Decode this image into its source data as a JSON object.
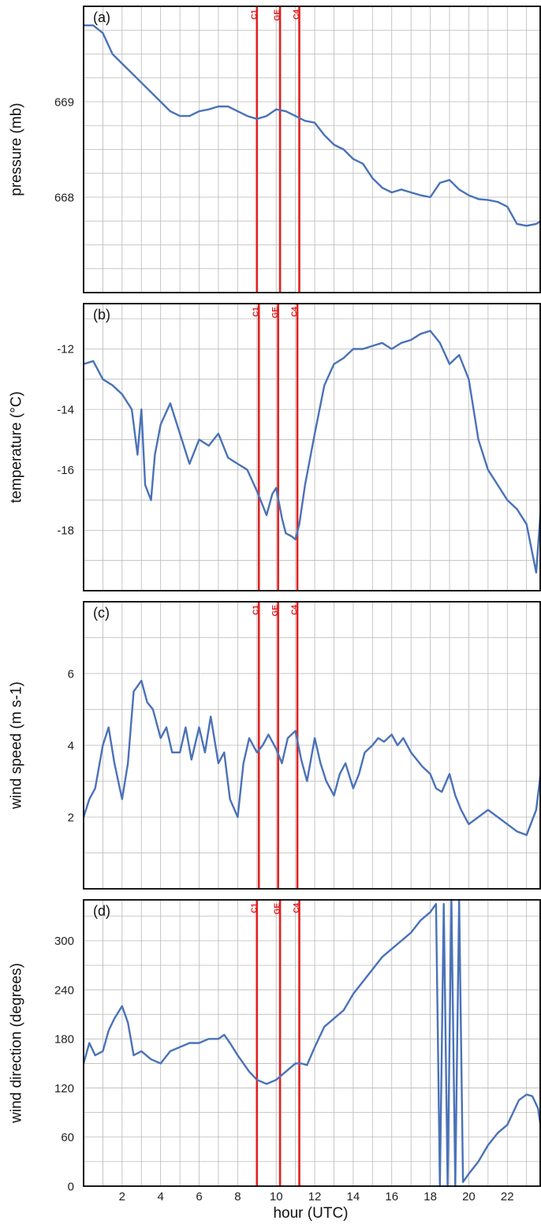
{
  "figure": {
    "xlabel": "hour (UTC)",
    "x_ticks": [
      "2",
      "4",
      "6",
      "8",
      "10",
      "12",
      "14",
      "16",
      "18",
      "20",
      "22"
    ],
    "event_labels": [
      "C1",
      "GE",
      "C4"
    ],
    "colors": {
      "series": "#4a72b8",
      "events": "#e02020",
      "grid": "#b9b9b9",
      "frame": "#000000"
    }
  },
  "chart_data": [
    {
      "type": "line",
      "panel_label": "(a)",
      "ylabel": "pressure (mb)",
      "ylim": [
        667.0,
        670.0
      ],
      "y_ticks": [
        668,
        669
      ],
      "y_tick_labels": [
        "668",
        "669"
      ],
      "y_gridlines": [
        667.25,
        667.5,
        667.75,
        668,
        668.25,
        668.5,
        668.75,
        669,
        669.25,
        669.5,
        669.75
      ],
      "xlim": [
        0,
        23.75
      ],
      "x_gridlines": [
        1,
        2,
        3,
        4,
        5,
        6,
        7,
        8,
        9,
        10,
        11,
        12,
        13,
        14,
        15,
        16,
        17,
        18,
        19,
        20,
        21,
        22,
        23
      ],
      "events": [
        {
          "label": "C1",
          "x": 9.0
        },
        {
          "label": "GE",
          "x": 10.2
        },
        {
          "label": "C4",
          "x": 11.2
        }
      ],
      "series": [
        {
          "x": [
            0,
            0.5,
            1.0,
            1.5,
            2.0,
            2.5,
            3.0,
            3.5,
            4.0,
            4.5,
            5.0,
            5.5,
            6.0,
            6.5,
            7.0,
            7.5,
            8.0,
            8.5,
            9.0,
            9.5,
            10.0,
            10.5,
            11.0,
            11.5,
            12.0,
            12.5,
            13.0,
            13.5,
            14.0,
            14.5,
            15.0,
            15.5,
            16.0,
            16.5,
            17.0,
            17.5,
            18.0,
            18.5,
            19.0,
            19.5,
            20.0,
            20.5,
            21.0,
            21.5,
            22.0,
            22.5,
            23.0,
            23.5,
            23.75
          ],
          "y": [
            669.8,
            669.8,
            669.72,
            669.5,
            669.4,
            669.3,
            669.2,
            669.1,
            669.0,
            668.9,
            668.85,
            668.85,
            668.9,
            668.92,
            668.95,
            668.95,
            668.9,
            668.85,
            668.82,
            668.85,
            668.92,
            668.9,
            668.85,
            668.8,
            668.78,
            668.65,
            668.55,
            668.5,
            668.4,
            668.35,
            668.2,
            668.1,
            668.05,
            668.08,
            668.05,
            668.02,
            668.0,
            668.15,
            668.18,
            668.08,
            668.02,
            667.98,
            667.97,
            667.95,
            667.9,
            667.72,
            667.7,
            667.72,
            667.75
          ]
        }
      ]
    },
    {
      "type": "line",
      "panel_label": "(b)",
      "ylabel": "temperature (°C)",
      "ylim": [
        -20,
        -10.5
      ],
      "y_ticks": [
        -18,
        -16,
        -14,
        -12
      ],
      "y_tick_labels": [
        "-18",
        "-16",
        "-14",
        "-12"
      ],
      "y_gridlines": [
        -19,
        -18,
        -17,
        -16,
        -15,
        -14,
        -13,
        -12,
        -11
      ],
      "xlim": [
        0,
        23.75
      ],
      "x_gridlines": [
        1,
        2,
        3,
        4,
        5,
        6,
        7,
        8,
        9,
        10,
        11,
        12,
        13,
        14,
        15,
        16,
        17,
        18,
        19,
        20,
        21,
        22,
        23
      ],
      "events": [
        {
          "label": "C1",
          "x": 9.1
        },
        {
          "label": "GE",
          "x": 10.1
        },
        {
          "label": "C4",
          "x": 11.1
        }
      ],
      "series": [
        {
          "x": [
            0,
            0.5,
            1.0,
            1.5,
            2.0,
            2.5,
            2.8,
            3.0,
            3.2,
            3.5,
            3.7,
            4.0,
            4.5,
            5.0,
            5.5,
            6.0,
            6.5,
            7.0,
            7.5,
            8.0,
            8.5,
            9.0,
            9.5,
            9.8,
            10.0,
            10.3,
            10.5,
            10.8,
            11.0,
            11.2,
            11.5,
            12.0,
            12.5,
            13.0,
            13.5,
            14.0,
            14.5,
            15.0,
            15.5,
            16.0,
            16.5,
            17.0,
            17.5,
            18.0,
            18.5,
            19.0,
            19.5,
            20.0,
            20.5,
            21.0,
            21.5,
            22.0,
            22.5,
            23.0,
            23.5,
            23.75
          ],
          "y": [
            -12.5,
            -12.4,
            -13.0,
            -13.2,
            -13.5,
            -14.0,
            -15.5,
            -14.0,
            -16.5,
            -17.0,
            -15.5,
            -14.5,
            -13.8,
            -14.8,
            -15.8,
            -15.0,
            -15.2,
            -14.8,
            -15.6,
            -15.8,
            -16.0,
            -16.7,
            -17.5,
            -16.8,
            -16.6,
            -17.6,
            -18.1,
            -18.2,
            -18.3,
            -17.8,
            -16.5,
            -14.8,
            -13.2,
            -12.5,
            -12.3,
            -12.0,
            -12.0,
            -11.9,
            -11.8,
            -12.0,
            -11.8,
            -11.7,
            -11.5,
            -11.4,
            -11.8,
            -12.5,
            -12.2,
            -13.0,
            -15.0,
            -16.0,
            -16.5,
            -17.0,
            -17.3,
            -17.8,
            -19.4,
            -17.2
          ]
        }
      ]
    },
    {
      "type": "line",
      "panel_label": "(c)",
      "ylabel": "wind speed (m s-1)",
      "ylim": [
        0,
        8
      ],
      "y_ticks": [
        2,
        4,
        6
      ],
      "y_tick_labels": [
        "2",
        "4",
        "6"
      ],
      "y_gridlines": [
        1,
        2,
        3,
        4,
        5,
        6,
        7
      ],
      "xlim": [
        0,
        23.75
      ],
      "x_gridlines": [
        1,
        2,
        3,
        4,
        5,
        6,
        7,
        8,
        9,
        10,
        11,
        12,
        13,
        14,
        15,
        16,
        17,
        18,
        19,
        20,
        21,
        22,
        23
      ],
      "events": [
        {
          "label": "C1",
          "x": 9.1
        },
        {
          "label": "GE",
          "x": 10.1
        },
        {
          "label": "C4",
          "x": 11.1
        }
      ],
      "series": [
        {
          "x": [
            0,
            0.3,
            0.6,
            1.0,
            1.3,
            1.6,
            2.0,
            2.3,
            2.6,
            3.0,
            3.3,
            3.6,
            4.0,
            4.3,
            4.6,
            5.0,
            5.3,
            5.6,
            6.0,
            6.3,
            6.6,
            7.0,
            7.3,
            7.6,
            8.0,
            8.3,
            8.6,
            9.0,
            9.3,
            9.6,
            10.0,
            10.3,
            10.6,
            11.0,
            11.3,
            11.6,
            12.0,
            12.3,
            12.6,
            13.0,
            13.3,
            13.6,
            14.0,
            14.3,
            14.6,
            15.0,
            15.3,
            15.6,
            16.0,
            16.3,
            16.6,
            17.0,
            17.3,
            17.6,
            18.0,
            18.3,
            18.6,
            19.0,
            19.3,
            19.6,
            20.0,
            20.5,
            21.0,
            21.5,
            22.0,
            22.5,
            23.0,
            23.5,
            23.75
          ],
          "y": [
            2.0,
            2.5,
            2.8,
            4.0,
            4.5,
            3.5,
            2.5,
            3.5,
            5.5,
            5.8,
            5.2,
            5.0,
            4.2,
            4.5,
            3.8,
            3.8,
            4.5,
            3.6,
            4.5,
            3.8,
            4.8,
            3.5,
            3.8,
            2.5,
            2.0,
            3.5,
            4.2,
            3.8,
            4.0,
            4.3,
            3.9,
            3.5,
            4.2,
            4.4,
            3.6,
            3.0,
            4.2,
            3.5,
            3.0,
            2.6,
            3.2,
            3.5,
            2.8,
            3.2,
            3.8,
            4.0,
            4.2,
            4.1,
            4.3,
            4.0,
            4.2,
            3.8,
            3.6,
            3.4,
            3.2,
            2.8,
            2.7,
            3.2,
            2.6,
            2.2,
            1.8,
            2.0,
            2.2,
            2.0,
            1.8,
            1.6,
            1.5,
            2.2,
            3.3
          ]
        }
      ]
    },
    {
      "type": "line",
      "panel_label": "(d)",
      "ylabel": "wind direction (degrees)",
      "ylim": [
        0,
        350
      ],
      "y_ticks": [
        0,
        60,
        120,
        180,
        240,
        300
      ],
      "y_tick_labels": [
        "0",
        "60",
        "120",
        "180",
        "240",
        "300"
      ],
      "y_gridlines": [
        30,
        60,
        90,
        120,
        150,
        180,
        210,
        240,
        270,
        300,
        330
      ],
      "xlim": [
        0,
        23.75
      ],
      "x_gridlines": [
        1,
        2,
        3,
        4,
        5,
        6,
        7,
        8,
        9,
        10,
        11,
        12,
        13,
        14,
        15,
        16,
        17,
        18,
        19,
        20,
        21,
        22,
        23
      ],
      "events": [
        {
          "label": "C1",
          "x": 9.0
        },
        {
          "label": "GE",
          "x": 10.2
        },
        {
          "label": "C4",
          "x": 11.2
        }
      ],
      "series": [
        {
          "x": [
            0,
            0.3,
            0.6,
            1.0,
            1.3,
            1.6,
            2.0,
            2.3,
            2.6,
            3.0,
            3.5,
            4.0,
            4.5,
            5.0,
            5.5,
            6.0,
            6.5,
            7.0,
            7.3,
            7.6,
            8.0,
            8.3,
            8.6,
            9.0,
            9.5,
            10.0,
            10.5,
            11.0,
            11.3,
            11.6,
            12.0,
            12.5,
            13.0,
            13.5,
            14.0,
            14.5,
            15.0,
            15.5,
            16.0,
            16.5,
            17.0,
            17.5,
            18.0,
            18.3,
            18.5,
            18.7,
            18.9,
            19.1,
            19.3,
            19.5,
            19.7,
            20.0,
            20.5,
            21.0,
            21.5,
            22.0,
            22.3,
            22.6,
            23.0,
            23.3,
            23.6,
            23.75
          ],
          "y": [
            150,
            175,
            160,
            165,
            190,
            205,
            220,
            200,
            160,
            165,
            155,
            150,
            165,
            170,
            175,
            175,
            180,
            180,
            185,
            175,
            160,
            150,
            140,
            130,
            125,
            130,
            140,
            150,
            150,
            148,
            170,
            195,
            205,
            215,
            235,
            250,
            265,
            280,
            290,
            300,
            310,
            325,
            335,
            345,
            0,
            345,
            0,
            350,
            0,
            350,
            5,
            15,
            30,
            50,
            65,
            75,
            90,
            105,
            112,
            110,
            95,
            70
          ]
        }
      ]
    }
  ]
}
